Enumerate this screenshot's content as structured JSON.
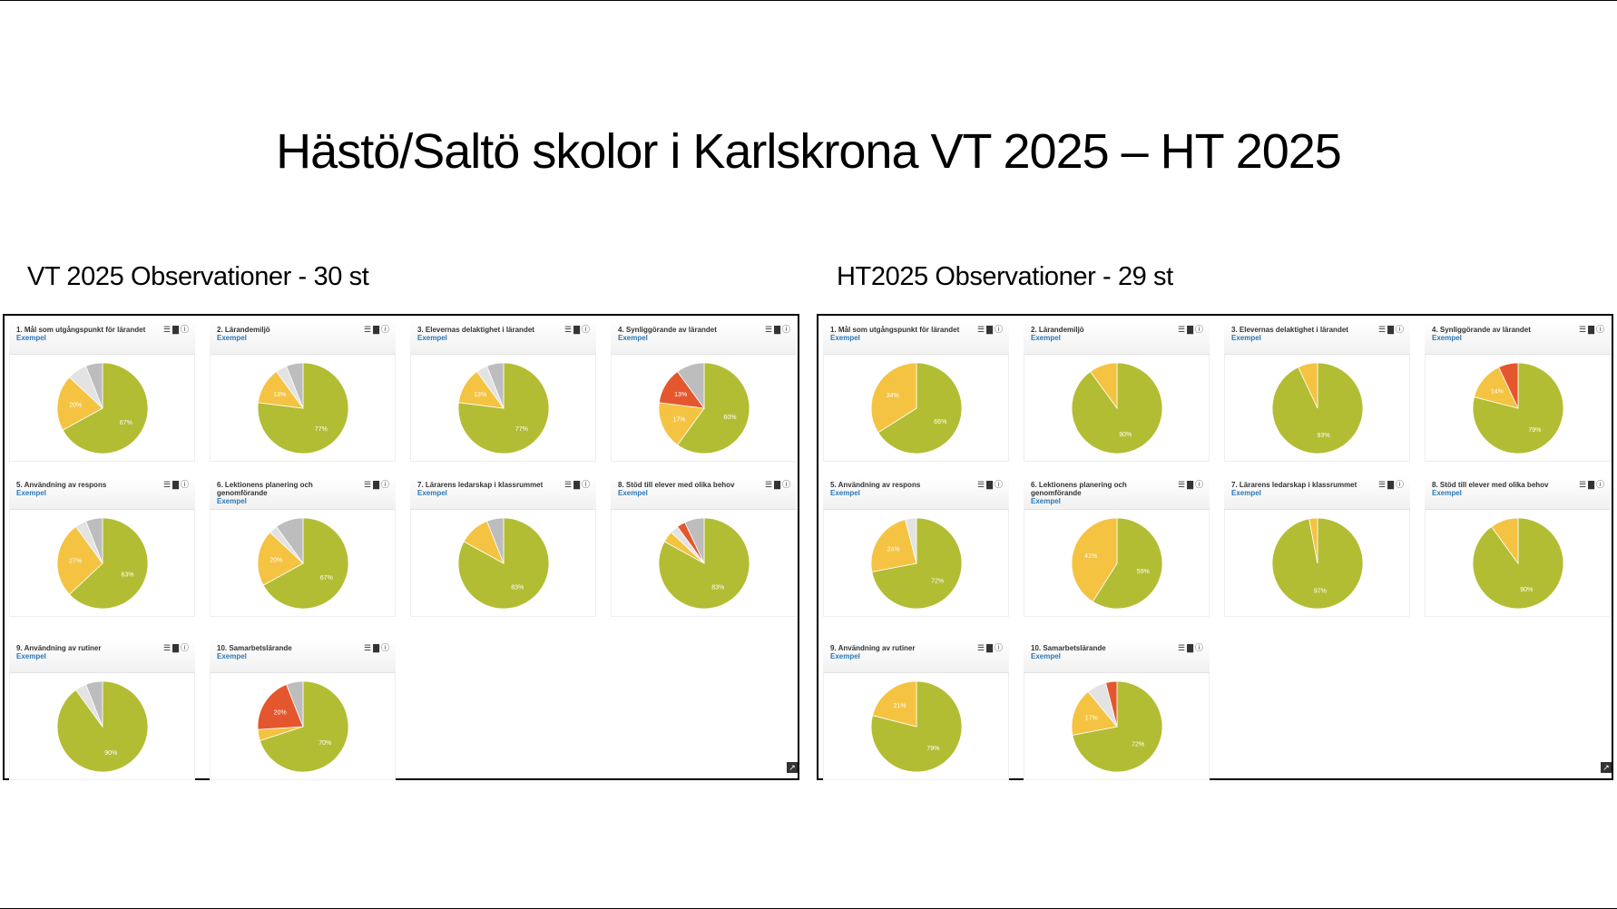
{
  "slide": {
    "title": "Hästö/Saltö skolor i Karlskrona VT 2025 – HT 2025"
  },
  "icons": {
    "list": "list-icon",
    "bar": "bar-chart-icon",
    "info": "info-icon",
    "expand": "expand-icon"
  },
  "colors": {
    "green": "#b2bd34",
    "yellow": "#f4c342",
    "red": "#e4572e",
    "grey": "#c8c8c8",
    "link": "#2a77b6"
  },
  "chart_data": [
    {
      "type": "pie",
      "panel": "VT 2025",
      "heading": "VT 2025 Observationer - 30 st",
      "charts": [
        {
          "title": "1. Mål som utgångspunkt för lärandet",
          "link": "Exempel",
          "slices": [
            {
              "category": "green",
              "value": 67,
              "label": "67%"
            },
            {
              "category": "yellow",
              "value": 20,
              "label": "20%"
            },
            {
              "category": "grey-light",
              "value": 7,
              "label": ""
            },
            {
              "category": "grey",
              "value": 6,
              "label": ""
            }
          ]
        },
        {
          "title": "2. Lärandemiljö",
          "link": "Exempel",
          "slices": [
            {
              "category": "green",
              "value": 77,
              "label": "77%"
            },
            {
              "category": "yellow",
              "value": 13,
              "label": "13%"
            },
            {
              "category": "grey-light",
              "value": 4,
              "label": ""
            },
            {
              "category": "grey",
              "value": 6,
              "label": ""
            }
          ]
        },
        {
          "title": "3. Elevernas delaktighet i lärandet",
          "link": "Exempel",
          "slices": [
            {
              "category": "green",
              "value": 77,
              "label": "77%"
            },
            {
              "category": "yellow",
              "value": 13,
              "label": "13%"
            },
            {
              "category": "grey-light",
              "value": 4,
              "label": ""
            },
            {
              "category": "grey",
              "value": 6,
              "label": ""
            }
          ]
        },
        {
          "title": "4. Synliggörande av lärandet",
          "link": "Exempel",
          "slices": [
            {
              "category": "green",
              "value": 60,
              "label": "60%"
            },
            {
              "category": "yellow",
              "value": 17,
              "label": "17%"
            },
            {
              "category": "red",
              "value": 13,
              "label": "13%"
            },
            {
              "category": "grey",
              "value": 10,
              "label": ""
            }
          ]
        },
        {
          "title": "5. Användning av respons",
          "link": "Exempel",
          "slices": [
            {
              "category": "green",
              "value": 63,
              "label": "63%"
            },
            {
              "category": "yellow",
              "value": 27,
              "label": "27%"
            },
            {
              "category": "grey-light",
              "value": 4,
              "label": ""
            },
            {
              "category": "grey",
              "value": 6,
              "label": ""
            }
          ]
        },
        {
          "title": "6. Lektionens planering och genomförande",
          "link": "Exempel",
          "slices": [
            {
              "category": "green",
              "value": 67,
              "label": "67%"
            },
            {
              "category": "yellow",
              "value": 20,
              "label": "20%"
            },
            {
              "category": "grey-light",
              "value": 3,
              "label": ""
            },
            {
              "category": "grey",
              "value": 10,
              "label": ""
            }
          ]
        },
        {
          "title": "7. Lärarens ledarskap i klassrummet",
          "link": "Exempel",
          "slices": [
            {
              "category": "green",
              "value": 83,
              "label": "83%"
            },
            {
              "category": "yellow",
              "value": 11,
              "label": ""
            },
            {
              "category": "grey",
              "value": 6,
              "label": ""
            }
          ]
        },
        {
          "title": "8. Stöd till elever med olika behov",
          "link": "Exempel",
          "slices": [
            {
              "category": "green",
              "value": 83,
              "label": "83%"
            },
            {
              "category": "yellow",
              "value": 4,
              "label": ""
            },
            {
              "category": "grey-light",
              "value": 3,
              "label": ""
            },
            {
              "category": "red",
              "value": 3,
              "label": ""
            },
            {
              "category": "grey",
              "value": 7,
              "label": ""
            }
          ]
        },
        {
          "title": "9. Användning av rutiner",
          "link": "Exempel",
          "slices": [
            {
              "category": "green",
              "value": 90,
              "label": "90%"
            },
            {
              "category": "grey-light",
              "value": 4,
              "label": ""
            },
            {
              "category": "grey",
              "value": 6,
              "label": ""
            }
          ]
        },
        {
          "title": "10. Samarbetslärande",
          "link": "Exempel",
          "slices": [
            {
              "category": "green",
              "value": 70,
              "label": "70%"
            },
            {
              "category": "yellow",
              "value": 4,
              "label": ""
            },
            {
              "category": "red",
              "value": 20,
              "label": "20%"
            },
            {
              "category": "grey",
              "value": 6,
              "label": ""
            }
          ]
        }
      ]
    },
    {
      "type": "pie",
      "panel": "HT2025",
      "heading": "HT2025 Observationer - 29 st",
      "charts": [
        {
          "title": "1. Mål som utgångspunkt för lärandet",
          "link": "Exempel",
          "slices": [
            {
              "category": "green",
              "value": 66,
              "label": "66%"
            },
            {
              "category": "yellow",
              "value": 34,
              "label": "34%"
            }
          ]
        },
        {
          "title": "2. Lärandemiljö",
          "link": "Exempel",
          "slices": [
            {
              "category": "green",
              "value": 90,
              "label": "90%"
            },
            {
              "category": "yellow",
              "value": 10,
              "label": ""
            }
          ]
        },
        {
          "title": "3. Elevernas delaktighet i lärandet",
          "link": "Exempel",
          "slices": [
            {
              "category": "green",
              "value": 93,
              "label": "93%"
            },
            {
              "category": "yellow",
              "value": 7,
              "label": ""
            }
          ]
        },
        {
          "title": "4. Synliggörande av lärandet",
          "link": "Exempel",
          "slices": [
            {
              "category": "green",
              "value": 79,
              "label": "79%"
            },
            {
              "category": "yellow",
              "value": 14,
              "label": "14%"
            },
            {
              "category": "red",
              "value": 7,
              "label": ""
            }
          ]
        },
        {
          "title": "5. Användning av respons",
          "link": "Exempel",
          "slices": [
            {
              "category": "green",
              "value": 72,
              "label": "72%"
            },
            {
              "category": "yellow",
              "value": 24,
              "label": "24%"
            },
            {
              "category": "grey-light",
              "value": 4,
              "label": ""
            }
          ]
        },
        {
          "title": "6. Lektionens planering och genomförande",
          "link": "Exempel",
          "slices": [
            {
              "category": "green",
              "value": 59,
              "label": "59%"
            },
            {
              "category": "yellow",
              "value": 41,
              "label": "41%"
            }
          ]
        },
        {
          "title": "7. Lärarens ledarskap i klassrummet",
          "link": "Exempel",
          "slices": [
            {
              "category": "green",
              "value": 97,
              "label": "97%"
            },
            {
              "category": "yellow",
              "value": 3,
              "label": ""
            }
          ]
        },
        {
          "title": "8. Stöd till elever med olika behov",
          "link": "Exempel",
          "slices": [
            {
              "category": "green",
              "value": 90,
              "label": "90%"
            },
            {
              "category": "yellow",
              "value": 10,
              "label": ""
            }
          ]
        },
        {
          "title": "9. Användning av rutiner",
          "link": "Exempel",
          "slices": [
            {
              "category": "green",
              "value": 79,
              "label": "79%"
            },
            {
              "category": "yellow",
              "value": 21,
              "label": "21%"
            }
          ]
        },
        {
          "title": "10. Samarbetslärande",
          "link": "Exempel",
          "slices": [
            {
              "category": "green",
              "value": 72,
              "label": "72%"
            },
            {
              "category": "yellow",
              "value": 17,
              "label": "17%"
            },
            {
              "category": "grey-light",
              "value": 7,
              "label": ""
            },
            {
              "category": "red",
              "value": 4,
              "label": ""
            }
          ]
        }
      ]
    }
  ]
}
